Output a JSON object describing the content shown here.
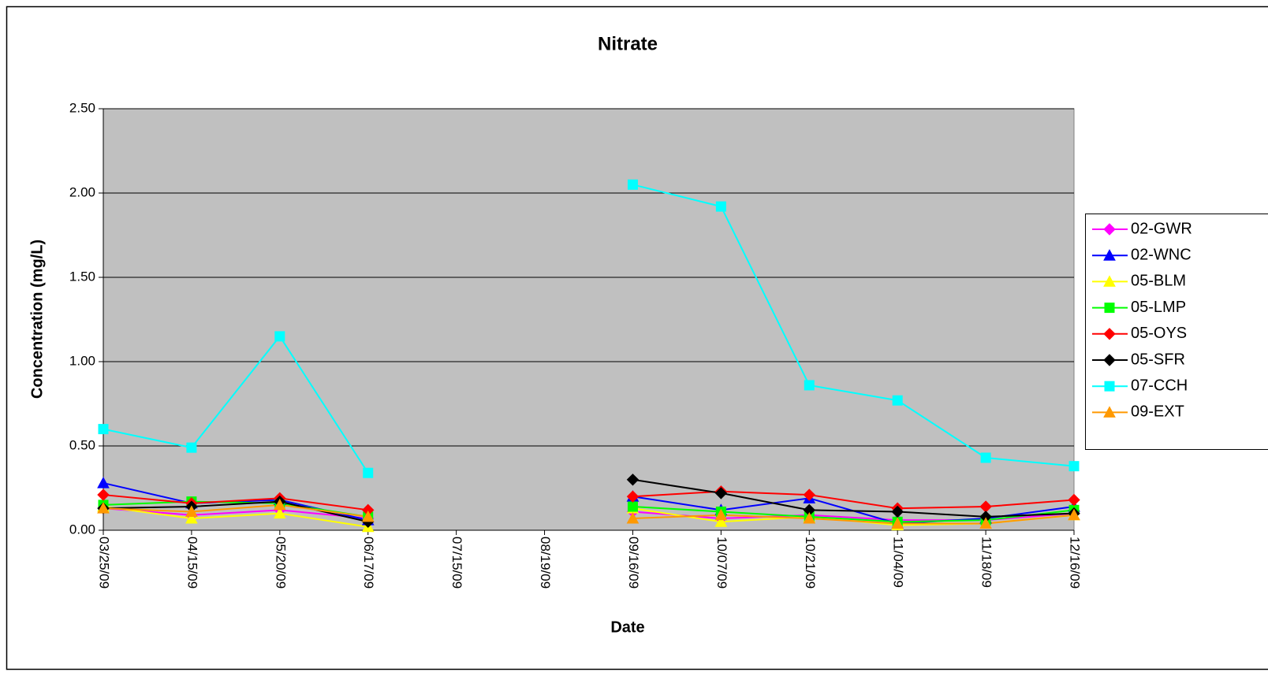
{
  "chart_data": {
    "type": "line",
    "title": "Nitrate",
    "x_label": "Date",
    "y_label": "Concentration (mg/L)",
    "categories": [
      "03/25/09",
      "04/15/09",
      "05/20/09",
      "06/17/09",
      "07/15/09",
      "08/19/09",
      "09/16/09",
      "10/07/09",
      "10/21/09",
      "11/04/09",
      "11/18/09",
      "12/16/09"
    ],
    "ylim": [
      0,
      2.5
    ],
    "yticks": [
      {
        "value": 0,
        "label": "0.00"
      },
      {
        "value": 0.5,
        "label": "0.50"
      },
      {
        "value": 1,
        "label": "1.00"
      },
      {
        "value": 1.5,
        "label": "1.50"
      },
      {
        "value": 2,
        "label": "2.00"
      },
      {
        "value": 2.5,
        "label": "2.50"
      }
    ],
    "grid": true,
    "legend": "right",
    "series": [
      {
        "name": "02-GWR",
        "color": "#ff00ff",
        "marker": "diamond",
        "values": [
          0.13,
          0.09,
          0.12,
          0.07,
          null,
          null,
          0.11,
          0.07,
          0.09,
          0.06,
          0.06,
          0.1
        ]
      },
      {
        "name": "02-WNC",
        "color": "#0000ff",
        "marker": "triangle",
        "values": [
          0.28,
          0.16,
          0.18,
          0.06,
          null,
          null,
          0.2,
          0.12,
          0.19,
          0.04,
          0.07,
          0.14
        ]
      },
      {
        "name": "05-BLM",
        "color": "#ffff00",
        "marker": "triangle",
        "values": [
          0.14,
          0.07,
          0.1,
          0.02,
          null,
          null,
          0.13,
          0.05,
          0.08,
          0.03,
          0.04,
          0.09
        ]
      },
      {
        "name": "05-LMP",
        "color": "#00ff00",
        "marker": "square",
        "values": [
          0.15,
          0.17,
          0.16,
          0.08,
          null,
          null,
          0.14,
          0.11,
          0.08,
          0.05,
          0.06,
          0.12
        ]
      },
      {
        "name": "05-OYS",
        "color": "#ff0000",
        "marker": "diamond",
        "values": [
          0.21,
          0.16,
          0.19,
          0.12,
          null,
          null,
          0.2,
          0.23,
          0.21,
          0.13,
          0.14,
          0.18
        ]
      },
      {
        "name": "05-SFR",
        "color": "#000000",
        "marker": "diamond",
        "values": [
          0.13,
          0.14,
          0.17,
          0.05,
          null,
          null,
          0.3,
          0.22,
          0.12,
          0.11,
          0.08,
          0.1
        ]
      },
      {
        "name": "07-CCH",
        "color": "#00ffff",
        "marker": "square",
        "values": [
          0.6,
          0.49,
          1.15,
          0.34,
          null,
          null,
          2.05,
          1.92,
          0.86,
          0.77,
          0.43,
          0.38
        ]
      },
      {
        "name": "09-EXT",
        "color": "#ff9900",
        "marker": "triangle",
        "values": [
          0.13,
          0.11,
          0.15,
          0.08,
          null,
          null,
          0.07,
          0.09,
          0.07,
          0.04,
          0.04,
          0.09
        ]
      }
    ]
  }
}
